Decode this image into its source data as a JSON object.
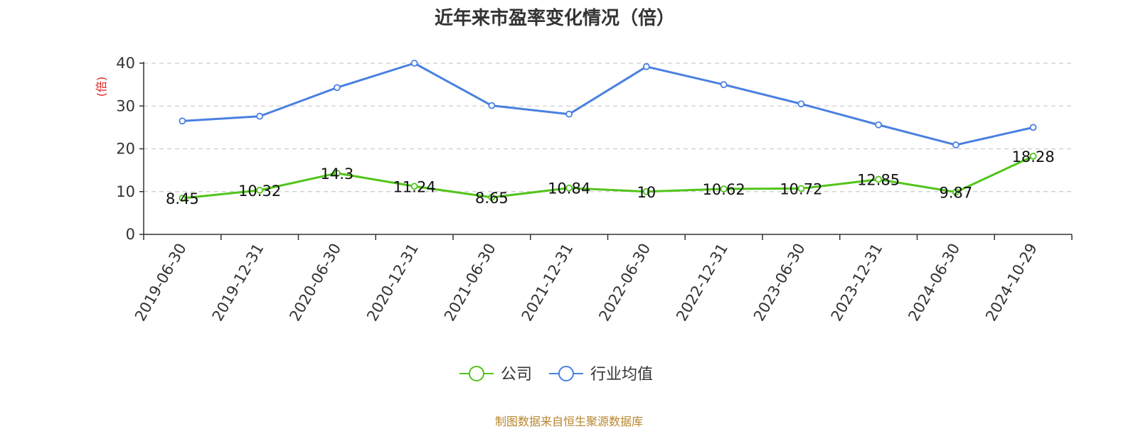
{
  "chart_data": {
    "type": "line",
    "title": "近年来市盈率变化情况（倍）",
    "ylabel": "(倍)",
    "xlabel": "",
    "categories": [
      "2019-06-30",
      "2019-12-31",
      "2020-06-30",
      "2020-12-31",
      "2021-06-30",
      "2021-12-31",
      "2022-06-30",
      "2022-12-31",
      "2023-06-30",
      "2023-12-31",
      "2024-06-30",
      "2024-10-29"
    ],
    "ylim": [
      0,
      40
    ],
    "yticks": [
      0,
      10,
      20,
      30,
      40
    ],
    "grid": true,
    "legend_position": "bottom",
    "series": [
      {
        "name": "公司",
        "color": "#52c41a",
        "values": [
          8.45,
          10.32,
          14.3,
          11.24,
          8.65,
          10.84,
          10,
          10.62,
          10.72,
          12.85,
          9.87,
          18.28
        ],
        "data_labels": [
          "8.45",
          "10.32",
          "14.3",
          "11.24",
          "8.65",
          "10.84",
          "10",
          "10.62",
          "10.72",
          "12.85",
          "9.87",
          "18.28"
        ]
      },
      {
        "name": "行业均值",
        "color": "#4a80e0",
        "values": [
          26.5,
          27.6,
          34.3,
          40.0,
          30.1,
          28.1,
          39.2,
          35.0,
          30.5,
          25.6,
          20.9,
          25.0
        ]
      }
    ]
  },
  "source_text": "制图数据来自恒生聚源数据库"
}
